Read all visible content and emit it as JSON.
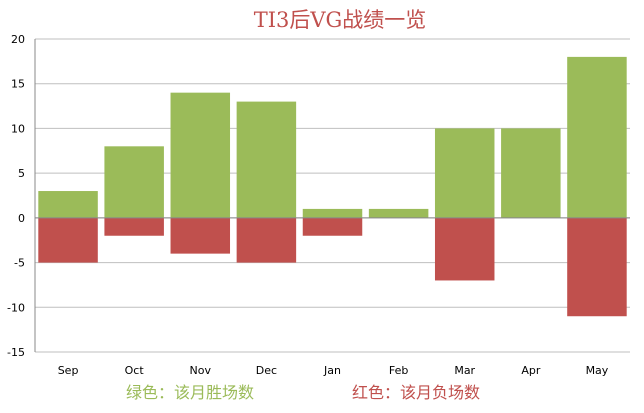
{
  "chart_data": {
    "type": "bar",
    "title": "TI3后VG战绩一览",
    "categories": [
      "Sep",
      "Oct",
      "Nov",
      "Dec",
      "Jan",
      "Feb",
      "Mar",
      "Apr",
      "May"
    ],
    "series": [
      {
        "name": "绿色：该月胜场数",
        "color": "#9bbb59",
        "values": [
          3,
          8,
          14,
          13,
          1,
          1,
          10,
          10,
          18
        ]
      },
      {
        "name": "红色：该月负场数",
        "color": "#c0504d",
        "values": [
          -5,
          -2,
          -4,
          -5,
          -2,
          0,
          -7,
          0,
          -11
        ]
      }
    ],
    "ylim": [
      -15,
      20
    ],
    "yticks": [
      -15,
      -10,
      -5,
      0,
      5,
      10,
      15,
      20
    ],
    "grid": true,
    "legend_position": "bottom",
    "xlabel": "",
    "ylabel": ""
  }
}
